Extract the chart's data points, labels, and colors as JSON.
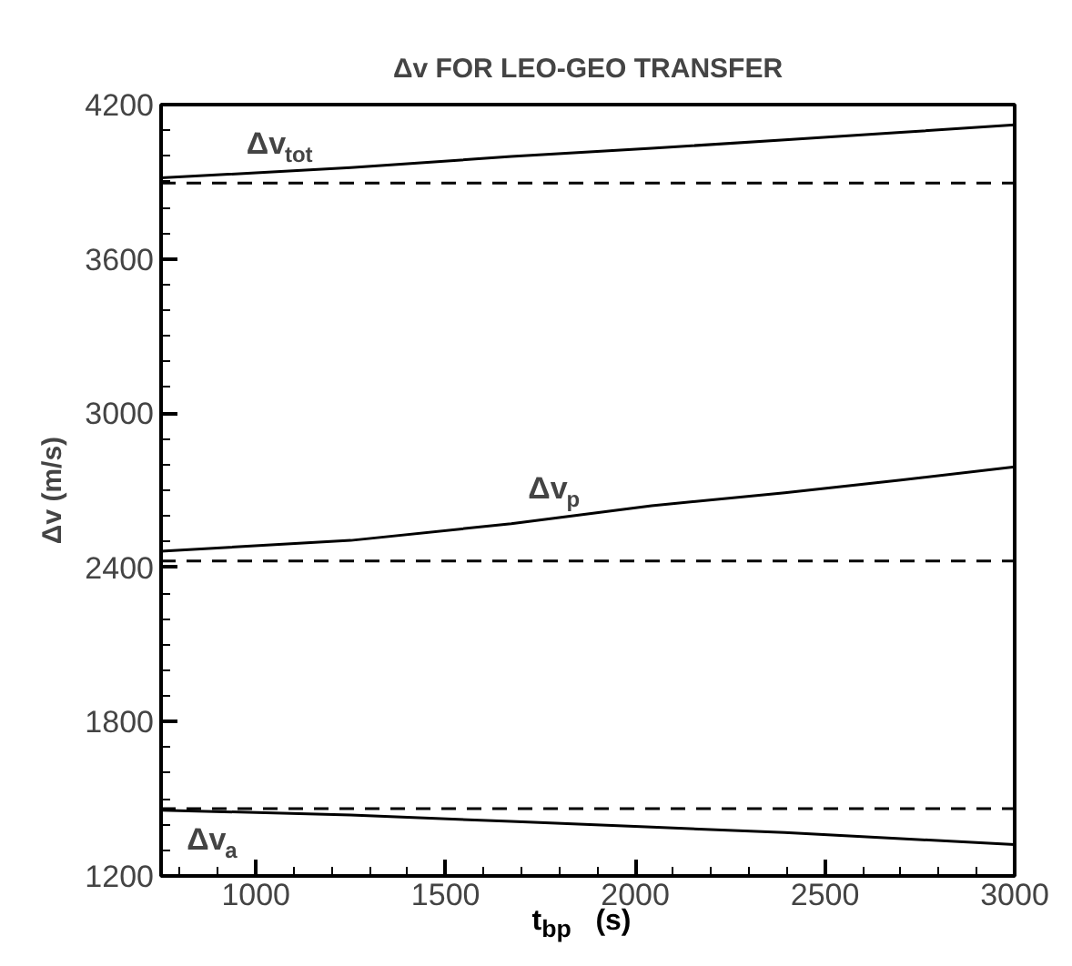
{
  "chart_data": {
    "type": "line",
    "title": "Δv FOR LEO-GEO TRANSFER",
    "xlabel": "t$_{bp}$   (s)",
    "ylabel": "Δv (m/s)",
    "x": [
      750,
      1250,
      1673,
      2043,
      2394,
      2700,
      3000
    ],
    "series": [
      {
        "name": "Δv$_{tot}$",
        "color": "#000000",
        "values": [
          3915,
          3955,
          3998,
          4030,
          4063,
          4092,
          4121
        ]
      },
      {
        "name": "Δv$_{p}$",
        "color": "#000000",
        "values": [
          2463,
          2505,
          2570,
          2640,
          2690,
          2740,
          2791
        ]
      },
      {
        "name": "Δv$_{a}$",
        "color": "#000000",
        "values": [
          1456,
          1437,
          1412,
          1390,
          1369,
          1345,
          1322
        ]
      }
    ],
    "ref_lines": [
      {
        "axis": "y",
        "value": 3895,
        "label": null,
        "color": "#000000",
        "line_style": "dashed"
      },
      {
        "axis": "y",
        "value": 2425,
        "label": null,
        "color": "#000000",
        "line_style": "dashed"
      },
      {
        "axis": "y",
        "value": 1462,
        "label": null,
        "color": "#000000",
        "line_style": "dashed"
      }
    ],
    "xlim": [
      750,
      3000
    ],
    "xticks": [
      {
        "value": 800,
        "label": null
      },
      {
        "value": 900,
        "label": null
      },
      1000,
      {
        "value": 1100,
        "label": null
      },
      {
        "value": 1200,
        "label": null
      },
      {
        "value": 1300,
        "label": null
      },
      {
        "value": 1400,
        "label": null
      },
      1500,
      {
        "value": 1600,
        "label": null
      },
      {
        "value": 1700,
        "label": null
      },
      {
        "value": 1800,
        "label": null
      },
      {
        "value": 1900,
        "label": null
      },
      2000,
      {
        "value": 2100,
        "label": null
      },
      {
        "value": 2200,
        "label": null
      },
      {
        "value": 2300,
        "label": null
      },
      {
        "value": 2400,
        "label": null
      },
      2500,
      {
        "value": 2600,
        "label": null
      },
      {
        "value": 2700,
        "label": null
      },
      {
        "value": 2800,
        "label": null
      },
      {
        "value": 2900,
        "label": null
      },
      3000
    ],
    "ylim": [
      1200,
      4200
    ],
    "yticks": [
      1200,
      {
        "value": 1300,
        "label": null
      },
      {
        "value": 1400,
        "label": null
      },
      {
        "value": 1500,
        "label": null
      },
      {
        "value": 1600,
        "label": null
      },
      {
        "value": 1700,
        "label": null
      },
      1800,
      {
        "value": 1900,
        "label": null
      },
      {
        "value": 2000,
        "label": null
      },
      {
        "value": 2100,
        "label": null
      },
      {
        "value": 2200,
        "label": null
      },
      {
        "value": 2300,
        "label": null
      },
      2400,
      {
        "value": 2500,
        "label": null
      },
      {
        "value": 2600,
        "label": null
      },
      {
        "value": 2700,
        "label": null
      },
      {
        "value": 2800,
        "label": null
      },
      {
        "value": 2900,
        "label": null
      },
      3000,
      {
        "value": 3100,
        "label": null
      },
      {
        "value": 3200,
        "label": null
      },
      {
        "value": 3300,
        "label": null
      },
      {
        "value": 3400,
        "label": null
      },
      {
        "value": 3500,
        "label": null
      },
      3600,
      {
        "value": 3700,
        "label": null
      },
      {
        "value": 3800,
        "label": null
      },
      {
        "value": 3900,
        "label": null
      },
      {
        "value": 4000,
        "label": null
      },
      {
        "value": 4100,
        "label": null
      },
      4200
    ],
    "grid": false,
    "line_style": "solid",
    "marker": "none"
  }
}
